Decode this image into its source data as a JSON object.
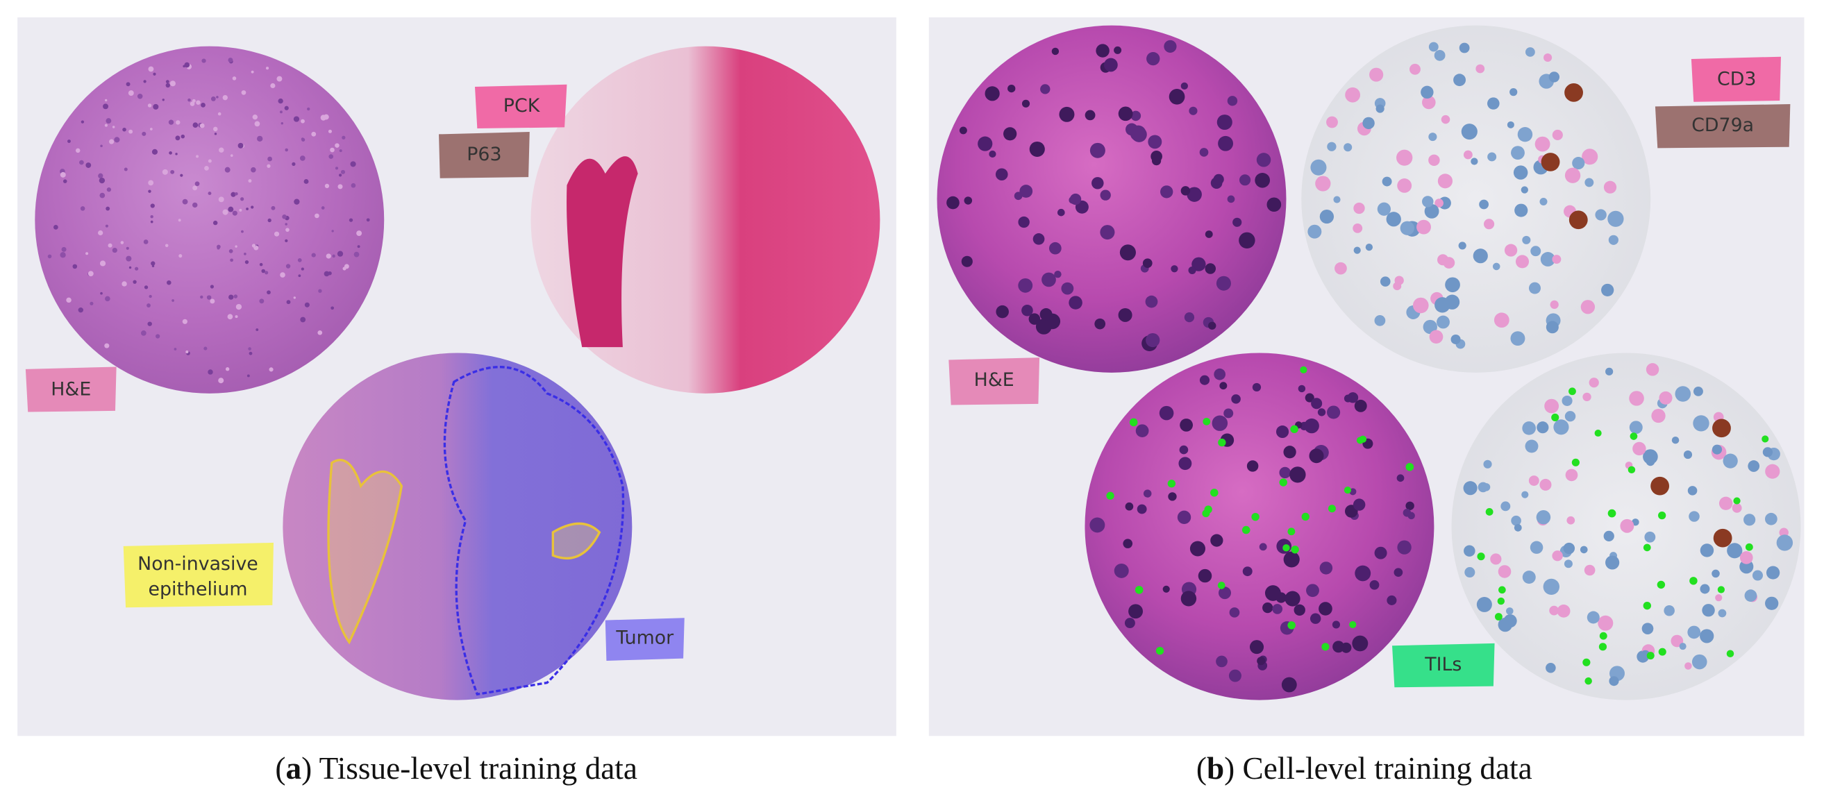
{
  "panels": [
    {
      "caption": [
        "(",
        "a",
        ") Tissue-level training data"
      ],
      "tags": {
        "pck": "PCK",
        "p63": "P63",
        "he": "H&E",
        "epithelium": [
          "Non-invasive",
          "epithelium"
        ],
        "tumor": "Tumor"
      }
    },
    {
      "caption": [
        "(",
        "b",
        ") Cell-level training data"
      ],
      "tags": {
        "cd3": "CD3",
        "cd79a": "CD79a",
        "he": "H&E",
        "tils": "TILs"
      }
    }
  ]
}
